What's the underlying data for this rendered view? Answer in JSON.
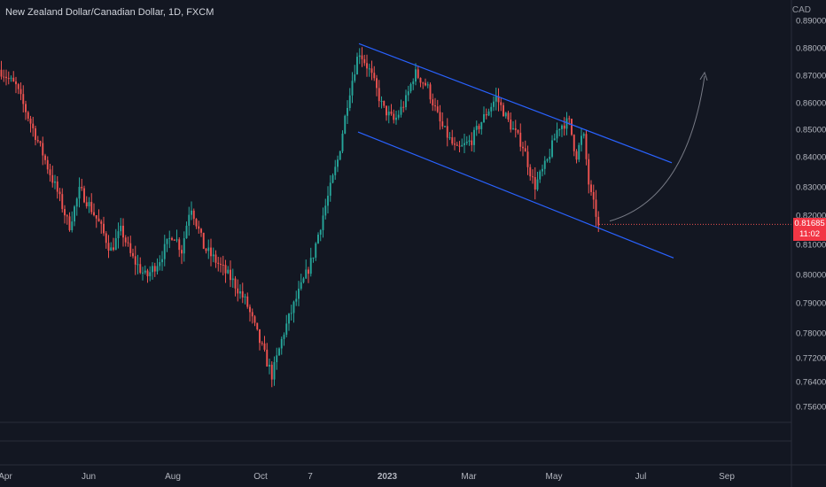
{
  "header": {
    "title": "New Zealand Dollar/Canadian Dollar, 1D, FXCM",
    "currency": "CAD"
  },
  "last_price": {
    "value": "0.81685",
    "countdown": "11:02",
    "color": "#f23645"
  },
  "colors": {
    "background": "#131722",
    "up": "#26a69a",
    "down": "#ef5350",
    "channel": "#2962ff",
    "arrow": "#787b86",
    "axis_text": "#b2b5be"
  },
  "chart_data": {
    "type": "candlestick",
    "title": "New Zealand Dollar/Canadian Dollar, 1D, FXCM",
    "y_axis_unit": "CAD",
    "ylim": [
      0.753,
      0.893
    ],
    "y_ticks": [
      "0.89000",
      "0.88000",
      "0.87000",
      "0.86000",
      "0.85000",
      "0.84000",
      "0.83000",
      "0.82000",
      "0.81000",
      "0.80000",
      "0.79000",
      "0.78000",
      "0.77200",
      "0.76400",
      "0.75600"
    ],
    "x_ticks": [
      "Apr",
      "Jun",
      "Aug",
      "Oct",
      "7",
      "2023",
      "Mar",
      "May",
      "Jul",
      "Sep"
    ],
    "grid": false,
    "price_path": [
      {
        "t": 0,
        "p": 0.872
      },
      {
        "t": 18,
        "p": 0.866
      },
      {
        "t": 35,
        "p": 0.852
      },
      {
        "t": 52,
        "p": 0.838
      },
      {
        "t": 65,
        "p": 0.828
      },
      {
        "t": 78,
        "p": 0.816
      },
      {
        "t": 90,
        "p": 0.829
      },
      {
        "t": 100,
        "p": 0.824
      },
      {
        "t": 112,
        "p": 0.817
      },
      {
        "t": 125,
        "p": 0.808
      },
      {
        "t": 137,
        "p": 0.815
      },
      {
        "t": 148,
        "p": 0.806
      },
      {
        "t": 165,
        "p": 0.799
      },
      {
        "t": 180,
        "p": 0.805
      },
      {
        "t": 195,
        "p": 0.814
      },
      {
        "t": 205,
        "p": 0.808
      },
      {
        "t": 215,
        "p": 0.824
      },
      {
        "t": 230,
        "p": 0.809
      },
      {
        "t": 245,
        "p": 0.804
      },
      {
        "t": 262,
        "p": 0.798
      },
      {
        "t": 278,
        "p": 0.79
      },
      {
        "t": 292,
        "p": 0.778
      },
      {
        "t": 307,
        "p": 0.766
      },
      {
        "t": 320,
        "p": 0.78
      },
      {
        "t": 335,
        "p": 0.792
      },
      {
        "t": 352,
        "p": 0.805
      },
      {
        "t": 367,
        "p": 0.823
      },
      {
        "t": 382,
        "p": 0.84
      },
      {
        "t": 393,
        "p": 0.862
      },
      {
        "t": 405,
        "p": 0.879
      },
      {
        "t": 418,
        "p": 0.871
      },
      {
        "t": 432,
        "p": 0.858
      },
      {
        "t": 445,
        "p": 0.853
      },
      {
        "t": 458,
        "p": 0.861
      },
      {
        "t": 468,
        "p": 0.871
      },
      {
        "t": 482,
        "p": 0.866
      },
      {
        "t": 497,
        "p": 0.852
      },
      {
        "t": 515,
        "p": 0.842
      },
      {
        "t": 532,
        "p": 0.846
      },
      {
        "t": 545,
        "p": 0.854
      },
      {
        "t": 560,
        "p": 0.862
      },
      {
        "t": 575,
        "p": 0.852
      },
      {
        "t": 590,
        "p": 0.844
      },
      {
        "t": 603,
        "p": 0.83
      },
      {
        "t": 617,
        "p": 0.838
      },
      {
        "t": 630,
        "p": 0.851
      },
      {
        "t": 642,
        "p": 0.853
      },
      {
        "t": 650,
        "p": 0.84
      },
      {
        "t": 658,
        "p": 0.849
      },
      {
        "t": 665,
        "p": 0.829
      },
      {
        "t": 676,
        "p": 0.8165
      }
    ],
    "annotations": [
      {
        "type": "channel-upper-line",
        "from": [
          "~Nov 2022",
          0.882
        ],
        "to": [
          "~Jun 2023",
          0.838
        ]
      },
      {
        "type": "channel-lower-line",
        "from": [
          "~Nov 2022",
          0.849
        ],
        "to": [
          "~Jun 2023",
          0.806
        ]
      },
      {
        "type": "projection-arrow",
        "from": [
          "~May 2023",
          0.818
        ],
        "to": [
          "~Jun 2023",
          0.871
        ]
      }
    ]
  }
}
